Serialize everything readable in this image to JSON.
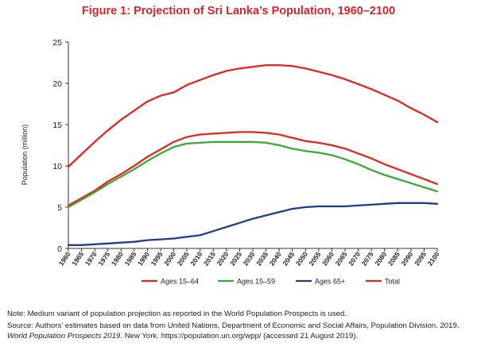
{
  "chart_data": {
    "type": "line",
    "title": "Figure 1: Projection of Sri Lanka’s Population, 1960–2100",
    "ylabel": "Population (million)",
    "xlabel": "",
    "ylim": [
      0,
      25
    ],
    "yticks": [
      0,
      5,
      10,
      15,
      20,
      25
    ],
    "xlim": [
      1960,
      2100
    ],
    "x": [
      1960,
      1965,
      1970,
      1975,
      1980,
      1985,
      1990,
      1995,
      2000,
      2005,
      2010,
      2015,
      2020,
      2025,
      2030,
      2035,
      2040,
      2045,
      2050,
      2055,
      2060,
      2065,
      2070,
      2075,
      2080,
      2085,
      2090,
      2095,
      2100
    ],
    "grid": false,
    "legend_position": "bottom",
    "series": [
      {
        "name": "Ages 15–64",
        "color": "#e3261f",
        "values": [
          5.2,
          6.1,
          7.0,
          8.1,
          9.0,
          10.0,
          11.1,
          12.0,
          12.9,
          13.5,
          13.8,
          13.9,
          14.0,
          14.1,
          14.1,
          14.0,
          13.8,
          13.4,
          13.0,
          12.8,
          12.5,
          12.1,
          11.5,
          10.9,
          10.2,
          9.6,
          9.0,
          8.4,
          7.8
        ]
      },
      {
        "name": "Ages 15–59",
        "color": "#3aaa35",
        "values": [
          5.0,
          5.9,
          6.8,
          7.8,
          8.7,
          9.6,
          10.6,
          11.5,
          12.3,
          12.7,
          12.8,
          12.9,
          12.9,
          12.9,
          12.9,
          12.8,
          12.5,
          12.1,
          11.8,
          11.6,
          11.3,
          10.8,
          10.2,
          9.5,
          8.9,
          8.4,
          7.9,
          7.4,
          6.9
        ]
      },
      {
        "name": "Ages 65+",
        "color": "#1f3c8e",
        "values": [
          0.4,
          0.4,
          0.5,
          0.6,
          0.7,
          0.8,
          1.0,
          1.1,
          1.2,
          1.4,
          1.6,
          2.1,
          2.6,
          3.1,
          3.6,
          4.0,
          4.4,
          4.8,
          5.0,
          5.1,
          5.1,
          5.1,
          5.2,
          5.3,
          5.4,
          5.5,
          5.5,
          5.5,
          5.4
        ]
      },
      {
        "name": "Total",
        "color": "#e3261f",
        "values": [
          9.9,
          11.4,
          12.9,
          14.3,
          15.6,
          16.7,
          17.8,
          18.5,
          18.9,
          19.8,
          20.4,
          21.0,
          21.5,
          21.8,
          22.0,
          22.2,
          22.2,
          22.1,
          21.8,
          21.4,
          21.0,
          20.5,
          19.9,
          19.3,
          18.6,
          17.9,
          17.0,
          16.2,
          15.3
        ]
      }
    ]
  },
  "notes": {
    "note": "Note: Medium variant of population projection as reported in the World Population Prospects is used.",
    "source_prefix": "Source: Authors’ estimates based on data from United Nations, Department of Economic and Social Affairs, Population Division. 2019. ",
    "source_italic": "World Population Prospects 2019",
    "source_suffix": ". New York. https://population.un.org/wpp/ (accessed 21 August 2019)."
  }
}
